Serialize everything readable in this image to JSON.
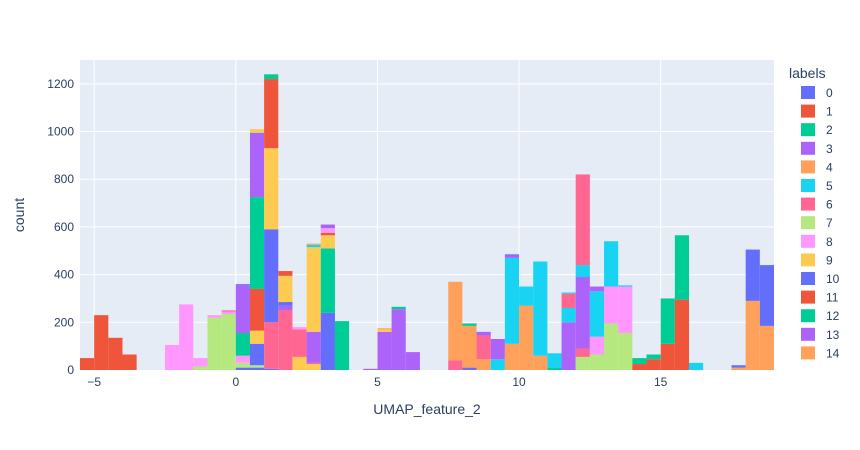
{
  "chart_data": {
    "type": "bar",
    "barmode": "stack",
    "xlabel": "UMAP_feature_2",
    "ylabel": "count",
    "xlim": [
      -5.5,
      19.0
    ],
    "ylim": [
      0,
      1300
    ],
    "x_ticks": [
      -5,
      0,
      5,
      10,
      15
    ],
    "x_tick_labels": [
      "−5",
      "0",
      "5",
      "10",
      "15"
    ],
    "y_ticks": [
      0,
      200,
      400,
      600,
      800,
      1000,
      1200
    ],
    "bin_width": 0.5,
    "grid": true,
    "legend_title": "labels",
    "legend_position": "right",
    "bins": [
      {
        "x0": -5.5,
        "stack": [
          {
            "label": "1",
            "count": 50
          }
        ]
      },
      {
        "x0": -5.0,
        "stack": [
          {
            "label": "1",
            "count": 230
          }
        ]
      },
      {
        "x0": -4.5,
        "stack": [
          {
            "label": "1",
            "count": 135
          }
        ]
      },
      {
        "x0": -4.0,
        "stack": [
          {
            "label": "1",
            "count": 65
          }
        ]
      },
      {
        "x0": -2.5,
        "stack": [
          {
            "label": "8",
            "count": 105
          }
        ]
      },
      {
        "x0": -2.0,
        "stack": [
          {
            "label": "8",
            "count": 275
          }
        ]
      },
      {
        "x0": -1.5,
        "stack": [
          {
            "label": "7",
            "count": 15
          },
          {
            "label": "8",
            "count": 35
          }
        ]
      },
      {
        "x0": -1.0,
        "stack": [
          {
            "label": "7",
            "count": 220
          },
          {
            "label": "8",
            "count": 10
          }
        ]
      },
      {
        "x0": -0.5,
        "stack": [
          {
            "label": "7",
            "count": 235
          },
          {
            "label": "8",
            "count": 10
          },
          {
            "label": "6",
            "count": 5
          }
        ]
      },
      {
        "x0": 0.0,
        "stack": [
          {
            "label": "0",
            "count": 10
          },
          {
            "label": "7",
            "count": 20
          },
          {
            "label": "8",
            "count": 30
          },
          {
            "label": "12",
            "count": 95
          },
          {
            "label": "3",
            "count": 200
          },
          {
            "label": "0",
            "count": 5
          }
        ]
      },
      {
        "x0": 0.5,
        "stack": [
          {
            "label": "0",
            "count": 10
          },
          {
            "label": "7",
            "count": 10
          },
          {
            "label": "10",
            "count": 90
          },
          {
            "label": "9",
            "count": 55
          },
          {
            "label": "1",
            "count": 175
          },
          {
            "label": "12",
            "count": 385
          },
          {
            "label": "3",
            "count": 270
          },
          {
            "label": "9",
            "count": 15
          }
        ]
      },
      {
        "x0": 1.0,
        "stack": [
          {
            "label": "10",
            "count": 5
          },
          {
            "label": "6",
            "count": 195
          },
          {
            "label": "10",
            "count": 390
          },
          {
            "label": "9",
            "count": 340
          },
          {
            "label": "1",
            "count": 290
          },
          {
            "label": "2",
            "count": 20
          }
        ]
      },
      {
        "x0": 1.5,
        "stack": [
          {
            "label": "6",
            "count": 250
          },
          {
            "label": "3",
            "count": 20
          },
          {
            "label": "0",
            "count": 15
          },
          {
            "label": "9",
            "count": 110
          },
          {
            "label": "1",
            "count": 20
          }
        ]
      },
      {
        "x0": 2.0,
        "stack": [
          {
            "label": "9",
            "count": 55
          },
          {
            "label": "6",
            "count": 115
          },
          {
            "label": "8",
            "count": 10
          }
        ]
      },
      {
        "x0": 2.5,
        "stack": [
          {
            "label": "9",
            "count": 25
          },
          {
            "label": "6",
            "count": 5
          },
          {
            "label": "3",
            "count": 130
          },
          {
            "label": "9",
            "count": 355
          },
          {
            "label": "5",
            "count": 10
          },
          {
            "label": "4",
            "count": 5
          }
        ]
      },
      {
        "x0": 3.0,
        "stack": [
          {
            "label": "10",
            "count": 240
          },
          {
            "label": "12",
            "count": 270
          },
          {
            "label": "9",
            "count": 55
          },
          {
            "label": "1",
            "count": 10
          },
          {
            "label": "8",
            "count": 20
          },
          {
            "label": "3",
            "count": 15
          }
        ]
      },
      {
        "x0": 3.5,
        "stack": [
          {
            "label": "12",
            "count": 205
          }
        ]
      },
      {
        "x0": 4.5,
        "stack": [
          {
            "label": "3",
            "count": 5
          }
        ]
      },
      {
        "x0": 5.0,
        "stack": [
          {
            "label": "3",
            "count": 160
          },
          {
            "label": "9",
            "count": 10
          },
          {
            "label": "4",
            "count": 5
          }
        ]
      },
      {
        "x0": 5.5,
        "stack": [
          {
            "label": "3",
            "count": 255
          },
          {
            "label": "12",
            "count": 10
          }
        ]
      },
      {
        "x0": 6.0,
        "stack": [
          {
            "label": "3",
            "count": 75
          }
        ]
      },
      {
        "x0": 7.5,
        "stack": [
          {
            "label": "6",
            "count": 40
          },
          {
            "label": "4",
            "count": 330
          }
        ]
      },
      {
        "x0": 8.0,
        "stack": [
          {
            "label": "0",
            "count": 10
          },
          {
            "label": "4",
            "count": 175
          },
          {
            "label": "12",
            "count": 10
          }
        ]
      },
      {
        "x0": 8.5,
        "stack": [
          {
            "label": "4",
            "count": 45
          },
          {
            "label": "6",
            "count": 100
          },
          {
            "label": "3",
            "count": 15
          }
        ]
      },
      {
        "x0": 9.0,
        "stack": [
          {
            "label": "5",
            "count": 45
          },
          {
            "label": "3",
            "count": 85
          }
        ]
      },
      {
        "x0": 9.5,
        "stack": [
          {
            "label": "4",
            "count": 110
          },
          {
            "label": "5",
            "count": 360
          },
          {
            "label": "3",
            "count": 10
          },
          {
            "label": "0",
            "count": 5
          }
        ]
      },
      {
        "x0": 10.0,
        "stack": [
          {
            "label": "4",
            "count": 270
          },
          {
            "label": "5",
            "count": 80
          }
        ]
      },
      {
        "x0": 10.5,
        "stack": [
          {
            "label": "4",
            "count": 60
          },
          {
            "label": "5",
            "count": 395
          }
        ]
      },
      {
        "x0": 11.0,
        "stack": [
          {
            "label": "12",
            "count": 10
          },
          {
            "label": "5",
            "count": 60
          }
        ]
      },
      {
        "x0": 11.5,
        "stack": [
          {
            "label": "3",
            "count": 200
          },
          {
            "label": "5",
            "count": 60
          },
          {
            "label": "6",
            "count": 60
          },
          {
            "label": "5",
            "count": 5
          }
        ]
      },
      {
        "x0": 12.0,
        "stack": [
          {
            "label": "7",
            "count": 55
          },
          {
            "label": "6",
            "count": 35
          },
          {
            "label": "3",
            "count": 300
          },
          {
            "label": "5",
            "count": 50
          },
          {
            "label": "6",
            "count": 380
          }
        ]
      },
      {
        "x0": 12.5,
        "stack": [
          {
            "label": "7",
            "count": 65
          },
          {
            "label": "8",
            "count": 75
          },
          {
            "label": "5",
            "count": 190
          },
          {
            "label": "3",
            "count": 20
          }
        ]
      },
      {
        "x0": 13.0,
        "stack": [
          {
            "label": "7",
            "count": 195
          },
          {
            "label": "8",
            "count": 155
          },
          {
            "label": "5",
            "count": 190
          }
        ]
      },
      {
        "x0": 13.5,
        "stack": [
          {
            "label": "7",
            "count": 155
          },
          {
            "label": "8",
            "count": 195
          },
          {
            "label": "5",
            "count": 5
          }
        ]
      },
      {
        "x0": 14.0,
        "stack": [
          {
            "label": "1",
            "count": 25
          },
          {
            "label": "12",
            "count": 25
          }
        ]
      },
      {
        "x0": 14.5,
        "stack": [
          {
            "label": "1",
            "count": 45
          },
          {
            "label": "12",
            "count": 20
          }
        ]
      },
      {
        "x0": 15.0,
        "stack": [
          {
            "label": "1",
            "count": 110
          },
          {
            "label": "12",
            "count": 190
          }
        ]
      },
      {
        "x0": 15.5,
        "stack": [
          {
            "label": "1",
            "count": 295
          },
          {
            "label": "12",
            "count": 270
          }
        ]
      },
      {
        "x0": 16.0,
        "stack": [
          {
            "label": "5",
            "count": 30
          }
        ]
      },
      {
        "x0": 17.5,
        "stack": [
          {
            "label": "4",
            "count": 10
          },
          {
            "label": "10",
            "count": 10
          }
        ]
      },
      {
        "x0": 18.0,
        "stack": [
          {
            "label": "4",
            "count": 290
          },
          {
            "label": "10",
            "count": 215
          }
        ]
      },
      {
        "x0": 18.5,
        "stack": [
          {
            "label": "4",
            "count": 185
          },
          {
            "label": "10",
            "count": 255
          }
        ]
      }
    ],
    "legend": [
      {
        "label": "0",
        "color": "#636efa"
      },
      {
        "label": "1",
        "color": "#EF553B"
      },
      {
        "label": "2",
        "color": "#00cc96"
      },
      {
        "label": "3",
        "color": "#ab63fa"
      },
      {
        "label": "4",
        "color": "#FFA15A"
      },
      {
        "label": "5",
        "color": "#19d3f3"
      },
      {
        "label": "6",
        "color": "#FF6692"
      },
      {
        "label": "7",
        "color": "#B6E880"
      },
      {
        "label": "8",
        "color": "#FF97FF"
      },
      {
        "label": "9",
        "color": "#FECB52"
      },
      {
        "label": "10",
        "color": "#636efa"
      },
      {
        "label": "11",
        "color": "#EF553B"
      },
      {
        "label": "12",
        "color": "#00cc96"
      },
      {
        "label": "13",
        "color": "#ab63fa"
      },
      {
        "label": "14",
        "color": "#FFA15A"
      }
    ],
    "plot_bgcolor": "#E5ECF6"
  }
}
